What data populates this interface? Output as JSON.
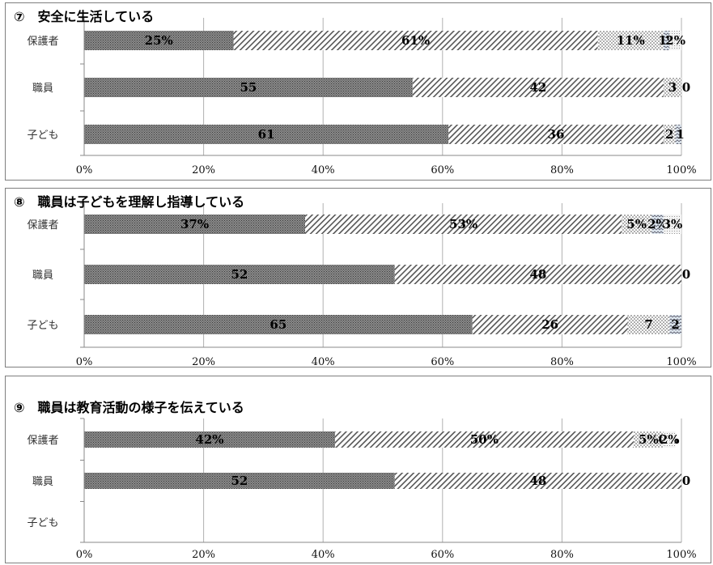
{
  "chart_data": [
    {
      "type": "bar",
      "stacked": true,
      "orientation": "horizontal",
      "title": "⑦　安全に生活している",
      "categories": [
        "保護者",
        "職員",
        "子ども"
      ],
      "series": [
        {
          "values": [
            25,
            55,
            61
          ],
          "labels": [
            "25%",
            "55",
            "61"
          ]
        },
        {
          "values": [
            61,
            42,
            36
          ],
          "labels": [
            "61%",
            "42",
            "36"
          ]
        },
        {
          "values": [
            11,
            3,
            2
          ],
          "labels": [
            "11%",
            "3",
            "2"
          ]
        },
        {
          "values": [
            1,
            0,
            1
          ],
          "labels": [
            "1%",
            "0",
            "1"
          ]
        },
        {
          "values": [
            2,
            0,
            0
          ],
          "labels": [
            "2%",
            "",
            ""
          ]
        }
      ],
      "xticks": [
        "0%",
        "20%",
        "40%",
        "60%",
        "80%",
        "100%"
      ],
      "xlim": [
        0,
        100
      ],
      "grid": true
    },
    {
      "type": "bar",
      "stacked": true,
      "orientation": "horizontal",
      "title": "⑧　職員は子どもを理解し指導している",
      "categories": [
        "保護者",
        "職員",
        "子ども"
      ],
      "series": [
        {
          "values": [
            37,
            52,
            65
          ],
          "labels": [
            "37%",
            "52",
            "65"
          ]
        },
        {
          "values": [
            53,
            48,
            26
          ],
          "labels": [
            "53%",
            "48",
            "26"
          ]
        },
        {
          "values": [
            5,
            0,
            7
          ],
          "labels": [
            "5%",
            "0",
            "7"
          ]
        },
        {
          "values": [
            2,
            0,
            2
          ],
          "labels": [
            "2%",
            "",
            "2"
          ]
        },
        {
          "values": [
            3,
            0,
            0
          ],
          "labels": [
            "3%",
            "",
            ""
          ]
        }
      ],
      "xticks": [
        "0%",
        "20%",
        "40%",
        "60%",
        "80%",
        "100%"
      ],
      "xlim": [
        0,
        100
      ],
      "grid": true
    },
    {
      "type": "bar",
      "stacked": true,
      "orientation": "horizontal",
      "title": "⑨　職員は教育活動の様子を伝えている",
      "categories": [
        "保護者",
        "職員",
        "子ども"
      ],
      "series": [
        {
          "values": [
            42,
            52,
            0
          ],
          "labels": [
            "42%",
            "52",
            ""
          ]
        },
        {
          "values": [
            50,
            48,
            0
          ],
          "labels": [
            "50%",
            "48",
            ""
          ]
        },
        {
          "values": [
            5,
            0,
            0
          ],
          "labels": [
            "5%",
            "0",
            ""
          ]
        },
        {
          "values": [
            0,
            0,
            0
          ],
          "labels": [
            "0%",
            "",
            ""
          ]
        },
        {
          "values": [
            2,
            0,
            0
          ],
          "labels": [
            "2%",
            "",
            ""
          ]
        }
      ],
      "xticks": [
        "0%",
        "20%",
        "40%",
        "60%",
        "80%",
        "100%"
      ],
      "xlim": [
        0,
        100
      ],
      "grid": true
    }
  ]
}
